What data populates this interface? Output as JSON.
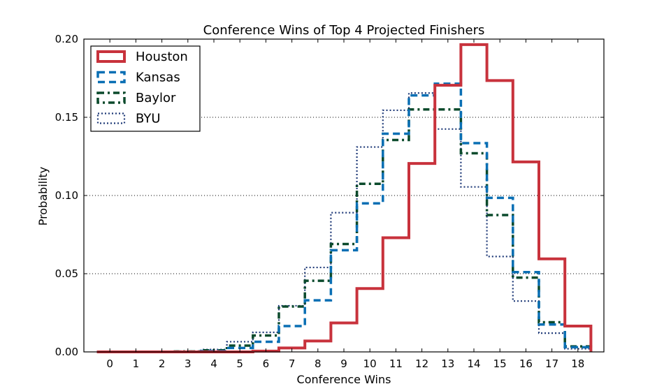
{
  "chart_data": {
    "type": "line",
    "title": "Conference Wins of Top 4 Projected Finishers",
    "xlabel": "Conference Wins",
    "ylabel": "Probability",
    "xlim": [
      -1,
      19
    ],
    "ylim": [
      0,
      0.2
    ],
    "x": [
      0,
      1,
      2,
      3,
      4,
      5,
      6,
      7,
      8,
      9,
      10,
      11,
      12,
      13,
      14,
      15,
      16,
      17,
      18
    ],
    "x_tick_labels": [
      "0",
      "1",
      "2",
      "3",
      "4",
      "5",
      "6",
      "7",
      "8",
      "9",
      "10",
      "11",
      "12",
      "13",
      "14",
      "15",
      "16",
      "17",
      "18"
    ],
    "y_ticks": [
      0,
      0.05,
      0.1,
      0.15,
      0.2
    ],
    "y_tick_labels": [
      "0.00",
      "0.05",
      "0.10",
      "0.15",
      "0.20"
    ],
    "grid": "horizontal dotted",
    "legend_position": "top-left",
    "step_style": "histogram steps",
    "series": [
      {
        "name": "Houston",
        "color": "#c8323c",
        "dash": "solid",
        "values": [
          0,
          0,
          0,
          0,
          0,
          0,
          0.0005,
          0.0025,
          0.007,
          0.0185,
          0.0405,
          0.073,
          0.1205,
          0.1705,
          0.1965,
          0.1735,
          0.1215,
          0.0595,
          0.0165
        ]
      },
      {
        "name": "Kansas",
        "color": "#0a6fb4",
        "dash": "dashed",
        "values": [
          0,
          0,
          0,
          0,
          0.0005,
          0.0025,
          0.0065,
          0.0165,
          0.033,
          0.065,
          0.095,
          0.1395,
          0.164,
          0.1715,
          0.1335,
          0.0985,
          0.051,
          0.0175,
          0.003
        ]
      },
      {
        "name": "Baylor",
        "color": "#0b4a2c",
        "dash": "dash-dot",
        "values": [
          0,
          0,
          0,
          0.0003,
          0.001,
          0.004,
          0.0105,
          0.029,
          0.0455,
          0.069,
          0.1075,
          0.1355,
          0.155,
          0.155,
          0.127,
          0.0875,
          0.0475,
          0.019,
          0.0035
        ]
      },
      {
        "name": "BYU",
        "color": "#1f3a78",
        "dash": "dotted",
        "values": [
          0,
          0,
          0,
          0.0005,
          0.0015,
          0.0065,
          0.0125,
          0.0295,
          0.054,
          0.089,
          0.131,
          0.1545,
          0.1655,
          0.1425,
          0.1055,
          0.061,
          0.0325,
          0.012,
          0.002
        ]
      }
    ]
  }
}
